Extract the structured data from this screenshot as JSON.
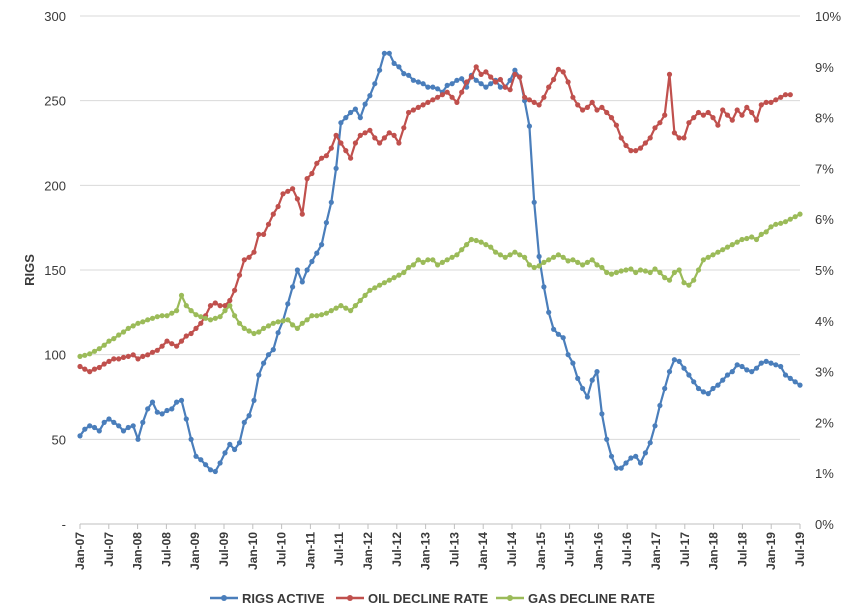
{
  "chart_data": {
    "type": "line",
    "title": "",
    "ylabel": "RIGS",
    "y2label": "",
    "ylim": [
      0,
      300
    ],
    "y2lim": [
      0,
      10
    ],
    "y_ticks": [
      "-",
      "50",
      "100",
      "150",
      "200",
      "250",
      "300"
    ],
    "y2_ticks": [
      "0%",
      "1%",
      "2%",
      "3%",
      "4%",
      "5%",
      "6%",
      "7%",
      "8%",
      "9%",
      "10%"
    ],
    "x_tick_labels": [
      "Jan-07",
      "Jul-07",
      "Jan-08",
      "Jul-08",
      "Jan-09",
      "Jul-09",
      "Jan-10",
      "Jul-10",
      "Jan-11",
      "Jul-11",
      "Jan-12",
      "Jul-12",
      "Jan-13",
      "Jul-13",
      "Jan-14",
      "Jul-14",
      "Jan-15",
      "Jul-15",
      "Jan-16",
      "Jul-16",
      "Jan-17",
      "Jul-17",
      "Jan-18",
      "Jul-18",
      "Jan-19",
      "Jul-19"
    ],
    "grid": "horizontal",
    "legend_position": "bottom",
    "series": [
      {
        "name": "RIGS ACTIVE",
        "axis": "left",
        "color": "#4a7ebb",
        "values": [
          52,
          56,
          58,
          57,
          55,
          60,
          62,
          60,
          58,
          55,
          57,
          58,
          50,
          60,
          68,
          72,
          66,
          65,
          67,
          68,
          72,
          73,
          62,
          50,
          40,
          38,
          35,
          32,
          31,
          36,
          42,
          47,
          44,
          48,
          60,
          64,
          73,
          88,
          95,
          100,
          103,
          113,
          120,
          130,
          140,
          150,
          143,
          150,
          155,
          160,
          165,
          178,
          190,
          210,
          237,
          240,
          243,
          245,
          240,
          248,
          253,
          260,
          268,
          278,
          278,
          272,
          270,
          266,
          265,
          262,
          261,
          260,
          258,
          258,
          257,
          255,
          259,
          260,
          262,
          263,
          258,
          265,
          262,
          260,
          258,
          260,
          262,
          258,
          258,
          262,
          268,
          264,
          250,
          235,
          190,
          158,
          140,
          125,
          115,
          112,
          110,
          100,
          95,
          86,
          80,
          75,
          85,
          90,
          65,
          50,
          40,
          33,
          33,
          36,
          39,
          40,
          36,
          42,
          48,
          58,
          70,
          80,
          90,
          97,
          96,
          92,
          88,
          84,
          80,
          78,
          77,
          80,
          82,
          85,
          88,
          90,
          94,
          93,
          91,
          90,
          92,
          95,
          96,
          95,
          94,
          93,
          88,
          86,
          84,
          82
        ]
      },
      {
        "name": "OIL DECLINE RATE",
        "axis": "right",
        "color": "#c0504d",
        "values": [
          3.1,
          3.05,
          3.0,
          3.05,
          3.08,
          3.15,
          3.2,
          3.25,
          3.25,
          3.28,
          3.3,
          3.33,
          3.25,
          3.3,
          3.33,
          3.38,
          3.42,
          3.5,
          3.6,
          3.55,
          3.5,
          3.6,
          3.7,
          3.75,
          3.85,
          3.95,
          4.1,
          4.3,
          4.35,
          4.3,
          4.3,
          4.4,
          4.6,
          4.9,
          5.2,
          5.25,
          5.35,
          5.7,
          5.7,
          5.9,
          6.1,
          6.25,
          6.5,
          6.55,
          6.6,
          6.4,
          6.1,
          6.8,
          6.9,
          7.1,
          7.2,
          7.25,
          7.4,
          7.65,
          7.5,
          7.35,
          7.2,
          7.5,
          7.65,
          7.7,
          7.75,
          7.6,
          7.5,
          7.6,
          7.7,
          7.65,
          7.5,
          7.8,
          8.1,
          8.15,
          8.2,
          8.25,
          8.3,
          8.35,
          8.4,
          8.45,
          8.5,
          8.4,
          8.3,
          8.5,
          8.7,
          8.8,
          9.0,
          8.85,
          8.9,
          8.8,
          8.7,
          8.75,
          8.6,
          8.55,
          8.85,
          8.8,
          8.4,
          8.35,
          8.3,
          8.25,
          8.4,
          8.6,
          8.75,
          8.95,
          8.9,
          8.7,
          8.4,
          8.25,
          8.15,
          8.2,
          8.3,
          8.15,
          8.2,
          8.1,
          8.0,
          7.85,
          7.6,
          7.45,
          7.35,
          7.35,
          7.4,
          7.5,
          7.6,
          7.8,
          7.9,
          8.05,
          8.85,
          7.7,
          7.6,
          7.6,
          7.9,
          8.0,
          8.1,
          8.05,
          8.1,
          8.0,
          7.85,
          8.15,
          8.05,
          7.95,
          8.15,
          8.05,
          8.2,
          8.1,
          7.95,
          8.25,
          8.3,
          8.3,
          8.35,
          8.4,
          8.45,
          8.45
        ]
      },
      {
        "name": "GAS DECLINE RATE",
        "axis": "right",
        "color": "#9bbb59",
        "values": [
          3.3,
          3.32,
          3.35,
          3.4,
          3.45,
          3.52,
          3.6,
          3.65,
          3.72,
          3.78,
          3.85,
          3.9,
          3.95,
          3.98,
          4.02,
          4.05,
          4.08,
          4.1,
          4.1,
          4.15,
          4.2,
          4.5,
          4.3,
          4.2,
          4.12,
          4.08,
          4.05,
          4.02,
          4.05,
          4.08,
          4.2,
          4.3,
          4.1,
          3.95,
          3.85,
          3.8,
          3.75,
          3.78,
          3.85,
          3.9,
          3.95,
          3.98,
          4.0,
          4.02,
          3.92,
          3.85,
          3.95,
          4.02,
          4.1,
          4.1,
          4.12,
          4.15,
          4.2,
          4.25,
          4.3,
          4.25,
          4.2,
          4.3,
          4.4,
          4.5,
          4.6,
          4.65,
          4.7,
          4.75,
          4.8,
          4.85,
          4.9,
          4.95,
          5.05,
          5.1,
          5.2,
          5.15,
          5.2,
          5.2,
          5.1,
          5.15,
          5.2,
          5.25,
          5.3,
          5.4,
          5.5,
          5.6,
          5.58,
          5.55,
          5.5,
          5.45,
          5.35,
          5.3,
          5.25,
          5.3,
          5.35,
          5.3,
          5.25,
          5.1,
          5.05,
          5.08,
          5.15,
          5.2,
          5.25,
          5.3,
          5.25,
          5.18,
          5.2,
          5.15,
          5.1,
          5.15,
          5.2,
          5.1,
          5.05,
          4.95,
          4.92,
          4.95,
          4.98,
          5.0,
          5.02,
          4.95,
          5.0,
          4.98,
          4.95,
          5.02,
          4.95,
          4.85,
          4.8,
          4.95,
          5.0,
          4.75,
          4.7,
          4.8,
          5.0,
          5.2,
          5.25,
          5.3,
          5.35,
          5.4,
          5.45,
          5.5,
          5.55,
          5.6,
          5.62,
          5.65,
          5.6,
          5.7,
          5.75,
          5.85,
          5.9,
          5.92,
          5.95,
          6.0,
          6.05,
          6.1
        ]
      }
    ]
  }
}
